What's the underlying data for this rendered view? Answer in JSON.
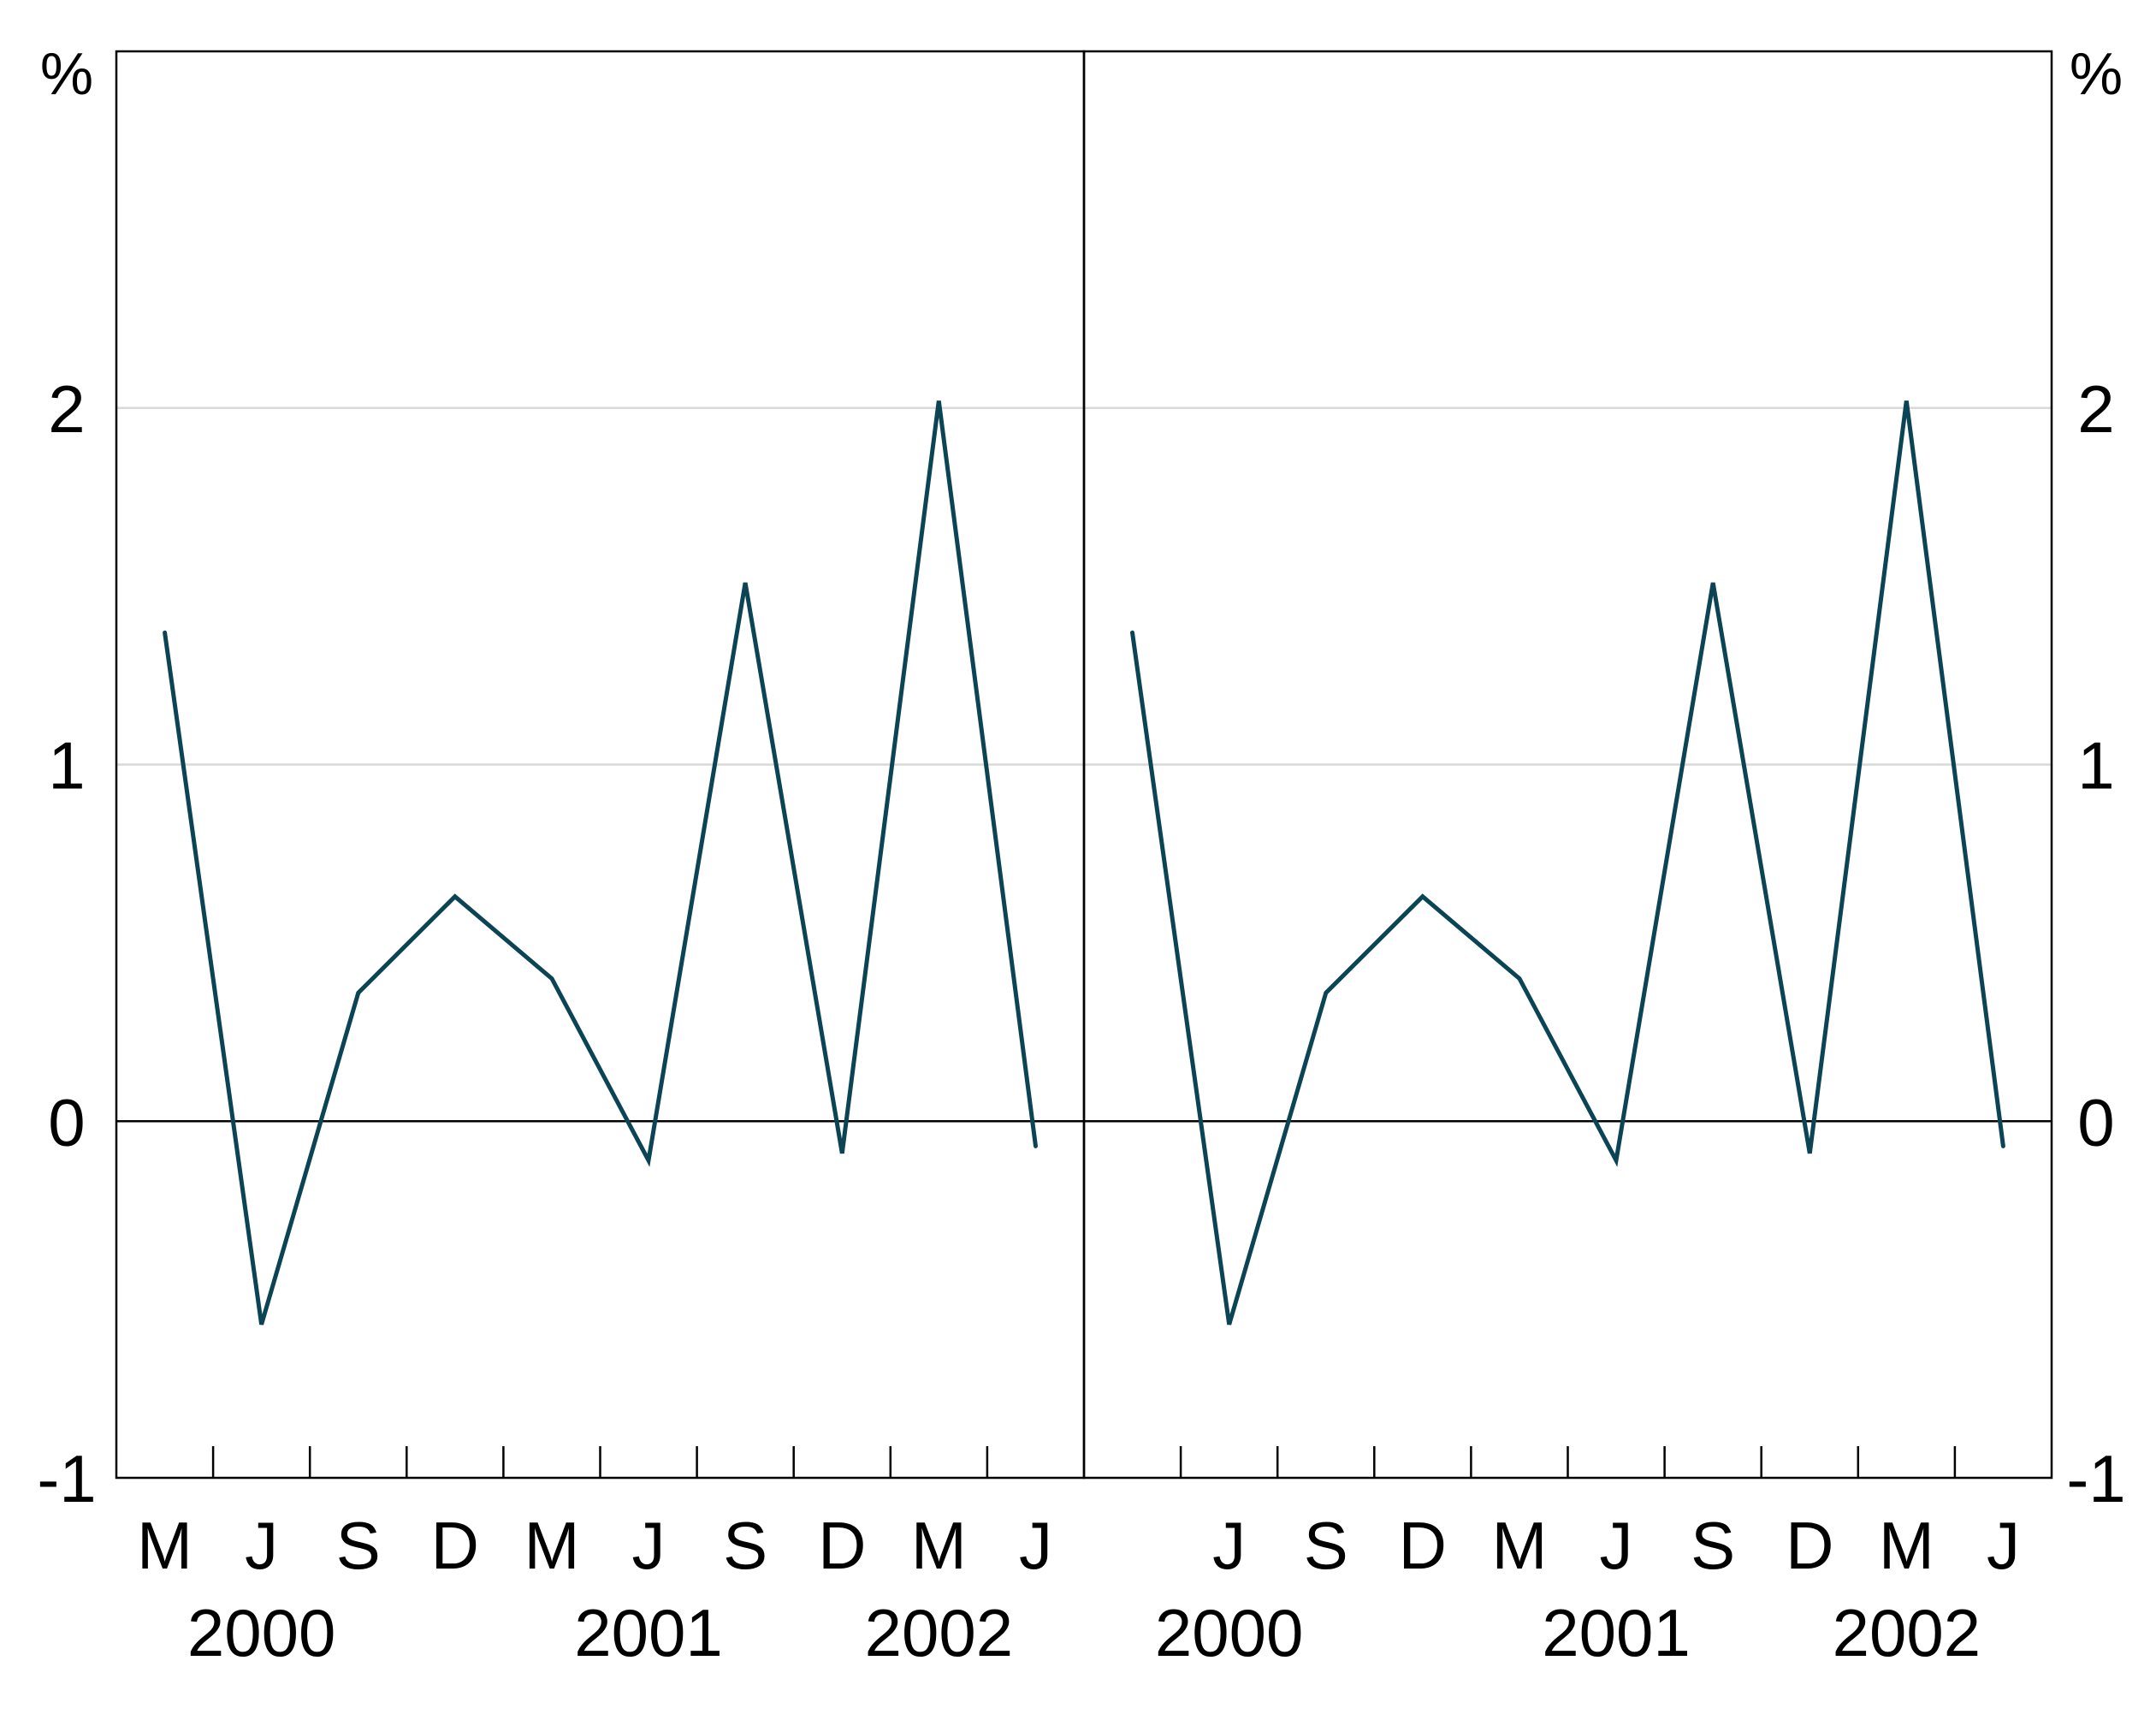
{
  "chart_data": [
    {
      "type": "line",
      "panel": "left",
      "y_unit_label": "%",
      "ylim": [
        -1,
        3
      ],
      "yticks": [
        -1,
        0,
        1,
        2
      ],
      "ytick_labels": [
        "-1",
        "0",
        "1",
        "2"
      ],
      "x_tick_labels": [
        "M",
        "J",
        "S",
        "D",
        "M",
        "J",
        "S",
        "D",
        "M",
        "J"
      ],
      "year_labels": [
        "2000",
        "2001",
        "2002"
      ],
      "grid": true,
      "series": [
        {
          "color": "#0b4454",
          "x": [
            "Mar 2000",
            "Jun 2000",
            "Sep 2000",
            "Dec 2000",
            "Mar 2001",
            "Jun 2001",
            "Sep 2001",
            "Dec 2001",
            "Mar 2002",
            "Jun 2002"
          ],
          "values": [
            1.37,
            -0.57,
            0.36,
            0.63,
            0.4,
            -0.11,
            1.51,
            -0.09,
            2.02,
            -0.07
          ]
        }
      ]
    },
    {
      "type": "line",
      "panel": "right",
      "y_unit_label": "%",
      "ylim": [
        -1,
        3
      ],
      "yticks": [
        -1,
        0,
        1,
        2
      ],
      "ytick_labels": [
        "-1",
        "0",
        "1",
        "2"
      ],
      "x_tick_labels": [
        "",
        "J",
        "S",
        "D",
        "M",
        "J",
        "S",
        "D",
        "M",
        "J"
      ],
      "year_labels": [
        "2000",
        "2001",
        "2002"
      ],
      "grid": true,
      "series": [
        {
          "color": "#0b4454",
          "x": [
            "Mar 2000",
            "Jun 2000",
            "Sep 2000",
            "Dec 2000",
            "Mar 2001",
            "Jun 2001",
            "Sep 2001",
            "Dec 2001",
            "Mar 2002",
            "Jun 2002"
          ],
          "values": [
            1.37,
            -0.57,
            0.36,
            0.63,
            0.4,
            -0.11,
            1.51,
            -0.09,
            2.02,
            -0.07
          ]
        }
      ]
    }
  ],
  "colors": {
    "line": "#0b4454",
    "grid": "#d9d9d9",
    "axis": "#000000"
  }
}
